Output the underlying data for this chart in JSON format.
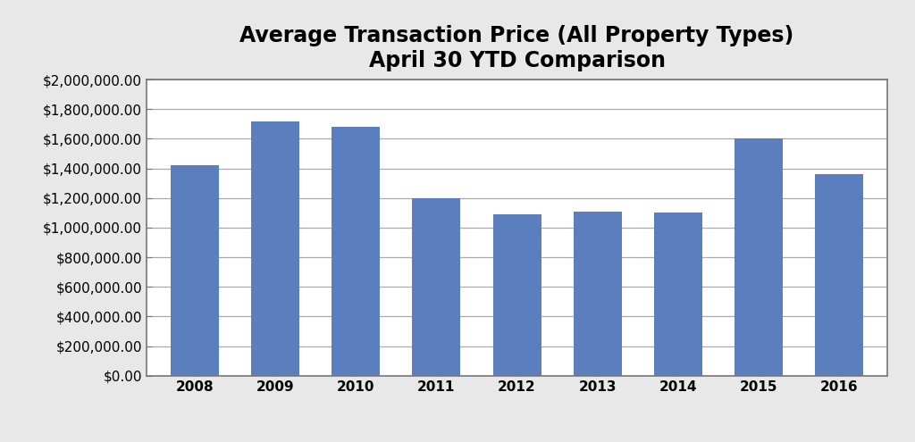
{
  "title_line1": "Average Transaction Price (All Property Types)",
  "title_line2": "April 30 YTD Comparison",
  "categories": [
    "2008",
    "2009",
    "2010",
    "2011",
    "2012",
    "2013",
    "2014",
    "2015",
    "2016"
  ],
  "values": [
    1420000,
    1720000,
    1680000,
    1200000,
    1090000,
    1110000,
    1100000,
    1600000,
    1360000
  ],
  "bar_color": "#5B7FBE",
  "background_color": "#E8E8E8",
  "plot_bg_color": "#FFFFFF",
  "ylim": [
    0,
    2000000
  ],
  "ytick_step": 200000,
  "title_fontsize": 17,
  "tick_fontsize": 11,
  "grid_color": "#AAAAAA",
  "spine_color": "#777777"
}
